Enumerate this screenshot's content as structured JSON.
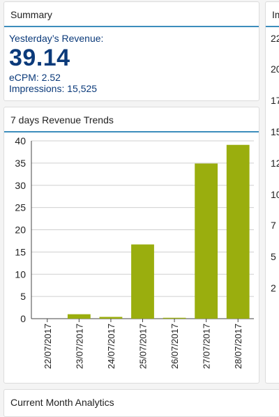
{
  "summary": {
    "title": "Summary",
    "label": "Yesterday’s Revenue:",
    "value": "39.14",
    "ecpm": "eCPM: 2.52",
    "impressions": "Impressions: 15,525"
  },
  "trends": {
    "title": "7 days Revenue Trends"
  },
  "right_panel": {
    "title": "Im",
    "ticks": [
      "22",
      "20",
      "17",
      "15",
      "12",
      "10",
      "7",
      "5",
      "2"
    ]
  },
  "analytics": {
    "title": "Current Month Analytics"
  },
  "colors": {
    "bar": "#9aae0e",
    "accent": "#3c8dbc",
    "summary_text": "#0b3a7a"
  },
  "chart_data": {
    "type": "bar",
    "categories": [
      "22/07/2017",
      "23/07/2017",
      "24/07/2017",
      "25/07/2017",
      "26/07/2017",
      "27/07/2017",
      "28/07/2017"
    ],
    "values": [
      0,
      1.0,
      0.4,
      16.7,
      0.2,
      34.9,
      39.1
    ],
    "ylim": [
      0,
      40
    ],
    "yticks": [
      0,
      5,
      10,
      15,
      20,
      25,
      30,
      35,
      40
    ],
    "grid": true
  }
}
